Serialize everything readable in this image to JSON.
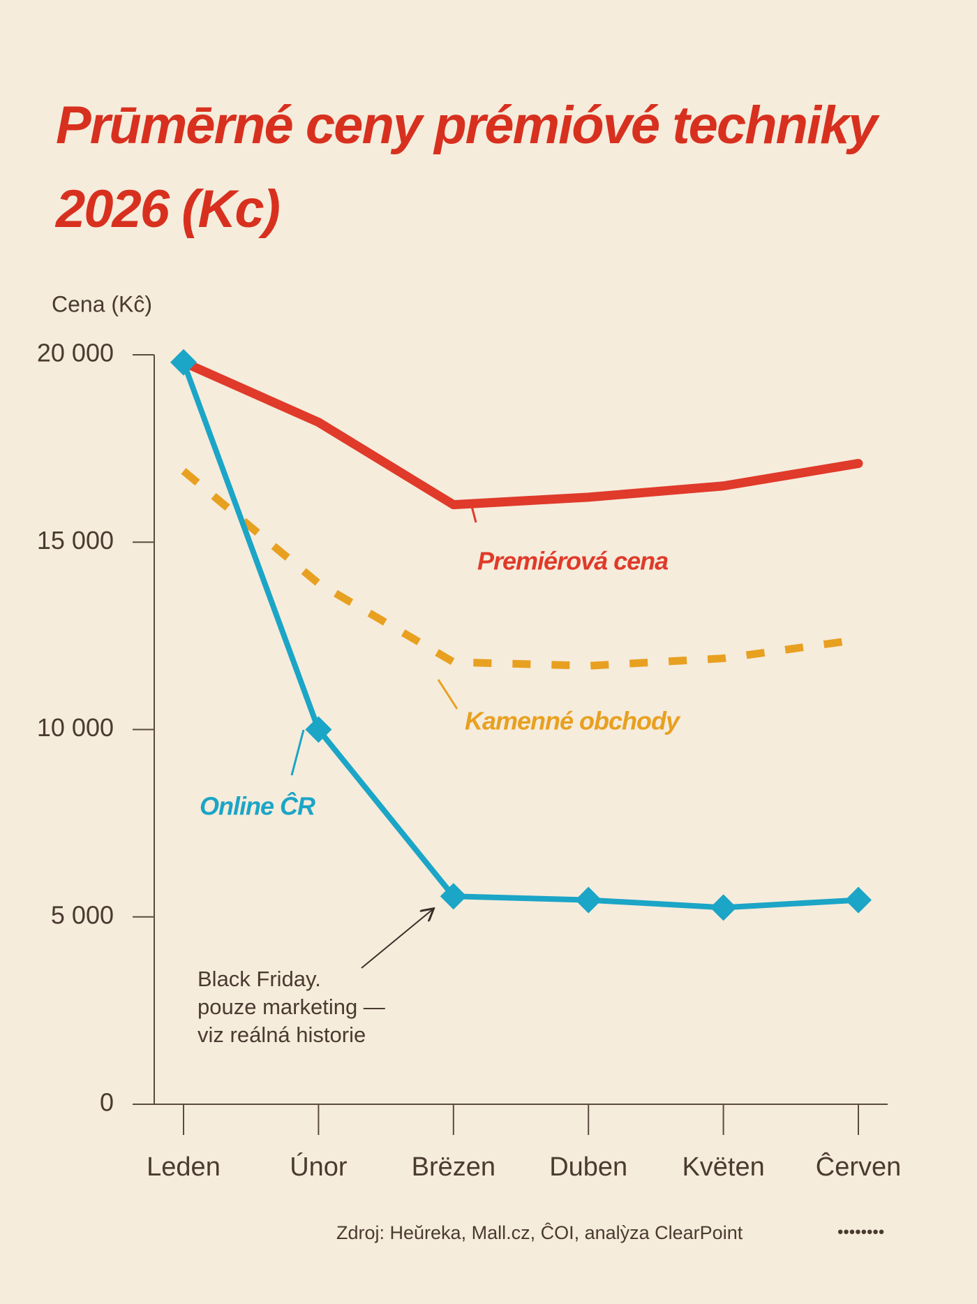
{
  "chart_data": {
    "type": "line",
    "title": "Prūmērné ceny prémióvé techniky 2026 (Kc)",
    "y_label": "Cena (Kĉ)",
    "categories": [
      "Leden",
      "Únor",
      "Brëzen",
      "Duben",
      "Kvëten",
      "Ĉerven"
    ],
    "series": [
      {
        "name": "Premiérová cena",
        "color": "#e03a2a",
        "style": "solid",
        "values": [
          19800,
          18200,
          16000,
          16200,
          16500,
          17100
        ]
      },
      {
        "name": "Kamenné obchody",
        "color": "#e8a020",
        "style": "dashed",
        "values": [
          16900,
          13900,
          11800,
          11700,
          11900,
          12400
        ]
      },
      {
        "name": "Online ĈR",
        "color": "#1ba5c6",
        "style": "solid",
        "marker": "diamond",
        "values": [
          19800,
          10000,
          5550,
          5450,
          5250,
          5450
        ]
      }
    ],
    "ylim": [
      0,
      20000
    ],
    "yticks": [
      0,
      {
        "value": 5000,
        "label": "5 000"
      },
      {
        "value": 10000,
        "label": "10 000"
      },
      {
        "value": 15000,
        "label": "15 000"
      },
      {
        "value": 20000,
        "label": "20 000"
      }
    ],
    "annotation": {
      "lines": [
        "Black Friday.",
        "pouze marketing —",
        "viz reálná historie"
      ],
      "category_index": 2,
      "series_index": 2
    },
    "source": "Zdroj: Heŭreka, Mall.cz, ĈOI, analỳza ClearPoint"
  }
}
